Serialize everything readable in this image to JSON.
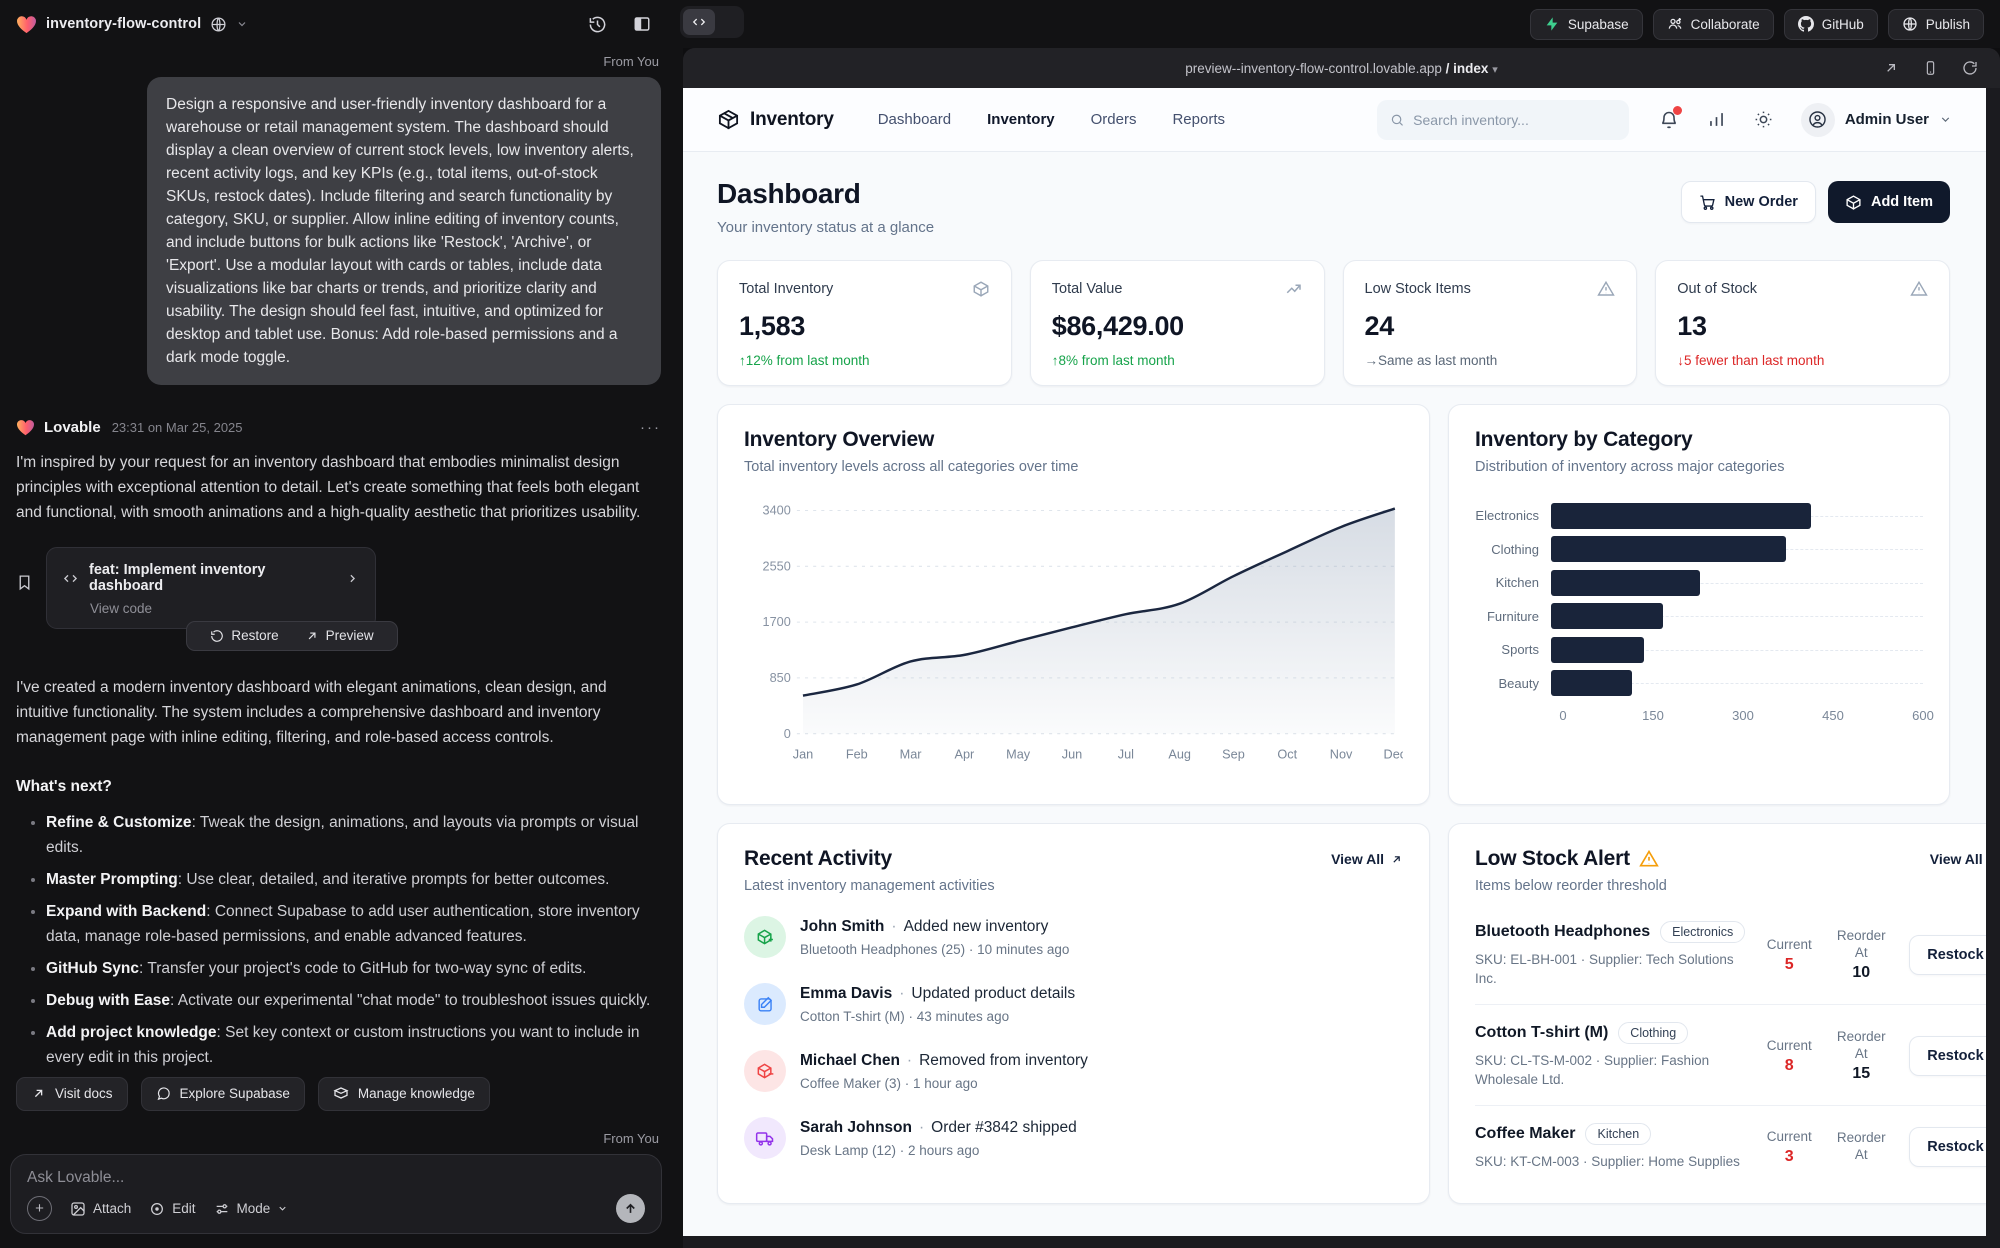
{
  "topbar": {
    "project_name": "inventory-flow-control",
    "actions": [
      {
        "label": "Supabase",
        "icon": "supabase-icon"
      },
      {
        "label": "Collaborate",
        "icon": "collaborate-icon"
      },
      {
        "label": "GitHub",
        "icon": "github-icon"
      },
      {
        "label": "Publish",
        "icon": "publish-icon"
      }
    ]
  },
  "chat": {
    "from_you_label": "From You",
    "user_message": "Design a responsive and user-friendly inventory dashboard for a warehouse or retail management system. The dashboard should display a clean overview of current stock levels, low inventory alerts, recent activity logs, and key KPIs (e.g., total items, out-of-stock SKUs, restock dates). Include filtering and search functionality by category, SKU, or supplier. Allow inline editing of inventory counts, and include buttons for bulk actions like 'Restock', 'Archive', or 'Export'. Use a modular layout with cards or tables, include data visualizations like bar charts or trends, and prioritize clarity and usability. The design should feel fast, intuitive, and optimized for desktop and tablet use. Bonus: Add role-based permissions and a dark mode toggle.",
    "assistant": {
      "name": "Lovable",
      "timestamp": "23:31 on Mar 25, 2025",
      "menu_dots": "···",
      "paragraph_1": "I'm inspired by your request for an inventory dashboard that embodies minimalist design principles with exceptional attention to detail. Let's create something that feels both elegant and functional, with smooth animations and a high-quality aesthetic that prioritizes usability.",
      "commit_title": "feat: Implement inventory dashboard",
      "view_code_label": "View code",
      "restore_label": "Restore",
      "preview_label": "Preview",
      "paragraph_2": "I've created a modern inventory dashboard with elegant animations, clean design, and intuitive functionality. The system includes a comprehensive dashboard and inventory management page with inline editing, filtering, and role-based access controls.",
      "whats_next_title": "What's next?",
      "bullets": [
        {
          "lead": "Refine & Customize",
          "text": ": Tweak the design, animations, and layouts via prompts or visual edits."
        },
        {
          "lead": "Master Prompting",
          "text": ": Use clear, detailed, and iterative prompts for better outcomes."
        },
        {
          "lead": "Expand with Backend",
          "text": ": Connect Supabase to add user authentication, store inventory data, manage role-based permissions, and enable advanced features."
        },
        {
          "lead": "GitHub Sync",
          "text": ": Transfer your project's code to GitHub for two-way sync of edits."
        },
        {
          "lead": "Debug with Ease",
          "text": ": Activate our experimental \"chat mode\" to troubleshoot issues quickly."
        },
        {
          "lead": "Add project knowledge",
          "text": ": Set key context or custom instructions you want to include in every edit in this project."
        }
      ]
    },
    "quick_actions": [
      {
        "label": "Visit docs",
        "icon": "external-link-icon"
      },
      {
        "label": "Explore Supabase",
        "icon": "chat-bubble-icon"
      },
      {
        "label": "Manage knowledge",
        "icon": "knowledge-box-icon"
      }
    ],
    "composer": {
      "placeholder": "Ask Lovable...",
      "attach_label": "Attach",
      "edit_label": "Edit",
      "mode_label": "Mode"
    }
  },
  "preview": {
    "url": "preview--inventory-flow-control.lovable.app",
    "url_path": "/ index",
    "app": {
      "brand": "Inventory",
      "nav_links": [
        {
          "label": "Dashboard",
          "active": false
        },
        {
          "label": "Inventory",
          "active": true
        },
        {
          "label": "Orders",
          "active": false
        },
        {
          "label": "Reports",
          "active": false
        }
      ],
      "search_placeholder": "Search inventory...",
      "user_name": "Admin User",
      "page_title": "Dashboard",
      "page_subtitle": "Your inventory status at a glance",
      "new_order_label": "New Order",
      "add_item_label": "Add Item",
      "kpis": [
        {
          "title": "Total Inventory",
          "icon": "package-icon",
          "value": "1,583",
          "delta": "↑12% from last month",
          "delta_color": "green"
        },
        {
          "title": "Total Value",
          "icon": "trending-up-icon",
          "value": "$86,429.00",
          "delta": "↑8% from last month",
          "delta_color": "green"
        },
        {
          "title": "Low Stock Items",
          "icon": "alert-triangle-icon",
          "value": "24",
          "delta": "→Same as last month",
          "delta_color": "gray"
        },
        {
          "title": "Out of Stock",
          "icon": "alert-triangle-icon",
          "value": "13",
          "delta": "↓5 fewer than last month",
          "delta_color": "red"
        }
      ],
      "recent_activity": {
        "title": "Recent Activity",
        "subtitle": "Latest inventory management activities",
        "view_all_label": "View All",
        "items": [
          {
            "icon": "package-plus-icon",
            "color": "green",
            "name": "John Smith",
            "action": "Added new inventory",
            "detail": "Bluetooth Headphones (25) · 10 minutes ago"
          },
          {
            "icon": "edit-icon",
            "color": "blue",
            "name": "Emma Davis",
            "action": "Updated product details",
            "detail": "Cotton T-shirt (M) · 43 minutes ago"
          },
          {
            "icon": "package-minus-icon",
            "color": "red",
            "name": "Michael Chen",
            "action": "Removed from inventory",
            "detail": "Coffee Maker (3) · 1 hour ago"
          },
          {
            "icon": "truck-icon",
            "color": "purple",
            "name": "Sarah Johnson",
            "action": "Order #3842 shipped",
            "detail": "Desk Lamp (12) · 2 hours ago"
          }
        ]
      },
      "low_stock": {
        "title": "Low Stock Alert",
        "subtitle": "Items below reorder threshold",
        "view_all_label": "View All",
        "current_label": "Current",
        "reorder_label": "Reorder At",
        "restock_label": "Restock",
        "items": [
          {
            "name": "Bluetooth Headphones",
            "category": "Electronics",
            "sku": "SKU: EL-BH-001 · Supplier: Tech Solutions Inc.",
            "current": "5",
            "reorder_at": "10"
          },
          {
            "name": "Cotton T-shirt (M)",
            "category": "Clothing",
            "sku": "SKU: CL-TS-M-002 · Supplier: Fashion Wholesale Ltd.",
            "current": "8",
            "reorder_at": "15"
          },
          {
            "name": "Coffee Maker",
            "category": "Kitchen",
            "sku": "SKU: KT-CM-003 · Supplier: Home Supplies",
            "current": "3",
            "reorder_at": ""
          }
        ]
      }
    }
  },
  "chart_data": [
    {
      "type": "area",
      "title": "Inventory Overview",
      "subtitle": "Total inventory levels across all categories over time",
      "x": [
        "Jan",
        "Feb",
        "Mar",
        "Apr",
        "May",
        "Jun",
        "Jul",
        "Aug",
        "Sep",
        "Oct",
        "Nov",
        "Dec"
      ],
      "values": [
        580,
        750,
        1100,
        1200,
        1410,
        1620,
        1820,
        1980,
        2400,
        2780,
        3150,
        3430
      ],
      "ylim": [
        0,
        3600
      ],
      "yticks": [
        0,
        850,
        1700,
        2550,
        3400
      ],
      "grid": true,
      "legend": false,
      "line_color": "#1b2740",
      "fill_color": "#94a3b8"
    },
    {
      "type": "bar",
      "title": "Inventory by Category",
      "subtitle": "Distribution of inventory across major categories",
      "orientation": "horizontal",
      "categories": [
        "Electronics",
        "Clothing",
        "Kitchen",
        "Furniture",
        "Sports",
        "Beauty"
      ],
      "values": [
        420,
        380,
        240,
        180,
        150,
        130
      ],
      "xlim": [
        0,
        600
      ],
      "xticks": [
        0,
        150,
        300,
        450,
        600
      ],
      "grid": true,
      "legend": false,
      "bar_color": "#19243a"
    }
  ]
}
